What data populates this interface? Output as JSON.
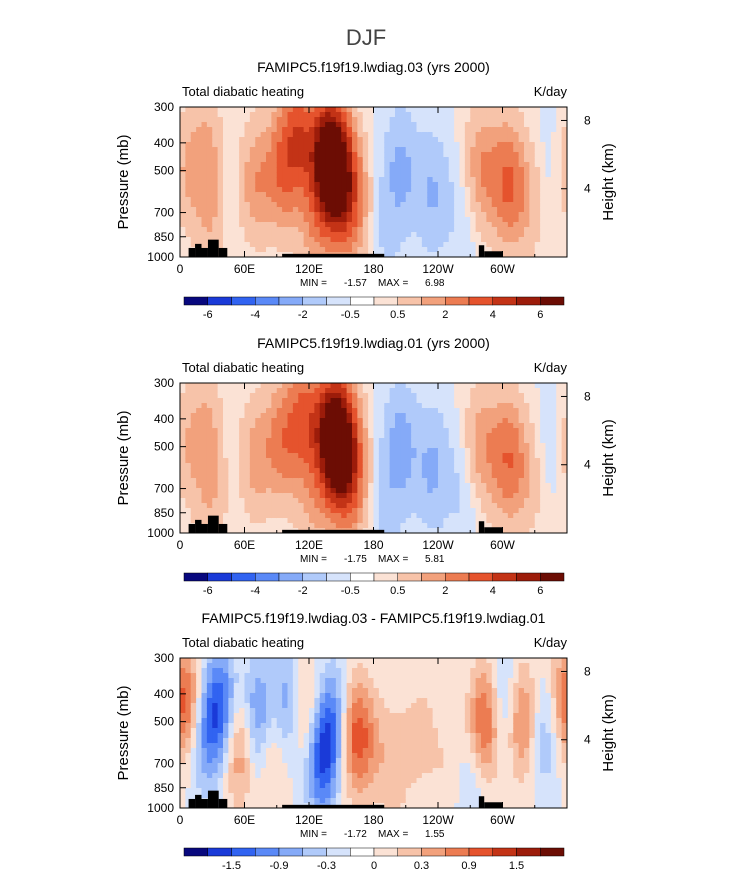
{
  "page_title": "DJF",
  "colors": {
    "scale_full": [
      "#08087e",
      "#1a3ad8",
      "#3163f1",
      "#5a89f7",
      "#85aaf8",
      "#b0cafa",
      "#d6e3fb",
      "#ffffff",
      "#fbe2d5",
      "#f7c3a9",
      "#f2a17c",
      "#ec7c52",
      "#e5532d",
      "#c33316",
      "#9c1c0a",
      "#6c0d04"
    ],
    "land": "#000000",
    "line": "#000000"
  },
  "chart_data": [
    {
      "type": "heatmap",
      "title": "FAMIPC5.f19f19.lwdiag.03 (yrs 2000)",
      "subtitle_left": "Total diabatic heating",
      "subtitle_right": "K/day",
      "xlabel": "",
      "ylabel": "Pressure (mb)",
      "ylabel_right": "Height (km)",
      "x_ticks": [
        "0",
        "60E",
        "120E",
        "180",
        "120W",
        "60W"
      ],
      "y_ticks": [
        "300",
        "400",
        "500",
        "700",
        "850",
        "1000"
      ],
      "y_ticks_right": [
        "8",
        "4"
      ],
      "stats": {
        "min_label": "MIN =",
        "min": "-1.57",
        "max_label": "MAX =",
        "max": "6.98"
      },
      "colorbar_labels": [
        "-6",
        "-4",
        "-2",
        "-0.5",
        "0.5",
        "2",
        "4",
        "6"
      ],
      "blobs": [
        {
          "lon": 5,
          "p": 500,
          "v": 1.2
        },
        {
          "lon": 25,
          "p": 450,
          "v": 1.5
        },
        {
          "lon": 30,
          "p": 800,
          "v": 1.0
        },
        {
          "lon": 45,
          "p": 600,
          "v": -0.3
        },
        {
          "lon": 70,
          "p": 550,
          "v": 1.8
        },
        {
          "lon": 95,
          "p": 500,
          "v": 2.5
        },
        {
          "lon": 110,
          "p": 380,
          "v": 3.2
        },
        {
          "lon": 135,
          "p": 450,
          "v": 4.5
        },
        {
          "lon": 145,
          "p": 500,
          "v": 6.9
        },
        {
          "lon": 160,
          "p": 650,
          "v": 2.5
        },
        {
          "lon": 125,
          "p": 800,
          "v": 1.2
        },
        {
          "lon": 205,
          "p": 500,
          "v": -1.5
        },
        {
          "lon": 235,
          "p": 600,
          "v": -1.3
        },
        {
          "lon": 190,
          "p": 850,
          "v": -0.5
        },
        {
          "lon": 265,
          "p": 700,
          "v": -0.6
        },
        {
          "lon": 280,
          "p": 500,
          "v": 2.0
        },
        {
          "lon": 305,
          "p": 550,
          "v": 3.0
        },
        {
          "lon": 325,
          "p": 650,
          "v": 1.0
        },
        {
          "lon": 345,
          "p": 500,
          "v": -0.4
        }
      ]
    },
    {
      "type": "heatmap",
      "title": "FAMIPC5.f19f19.lwdiag.01 (yrs 2000)",
      "subtitle_left": "Total diabatic heating",
      "subtitle_right": "K/day",
      "xlabel": "",
      "ylabel": "Pressure (mb)",
      "ylabel_right": "Height (km)",
      "x_ticks": [
        "0",
        "60E",
        "120E",
        "180",
        "120W",
        "60W"
      ],
      "y_ticks": [
        "300",
        "400",
        "500",
        "700",
        "850",
        "1000"
      ],
      "y_ticks_right": [
        "8",
        "4"
      ],
      "stats": {
        "min_label": "MIN =",
        "min": "-1.75",
        "max_label": "MAX =",
        "max": "5.81"
      },
      "colorbar_labels": [
        "-6",
        "-4",
        "-2",
        "-0.5",
        "0.5",
        "2",
        "4",
        "6"
      ],
      "blobs": [
        {
          "lon": 5,
          "p": 500,
          "v": 1.0
        },
        {
          "lon": 25,
          "p": 450,
          "v": 1.4
        },
        {
          "lon": 30,
          "p": 800,
          "v": 1.0
        },
        {
          "lon": 45,
          "p": 600,
          "v": -0.2
        },
        {
          "lon": 70,
          "p": 550,
          "v": 1.6
        },
        {
          "lon": 95,
          "p": 480,
          "v": 2.3
        },
        {
          "lon": 115,
          "p": 400,
          "v": 3.0
        },
        {
          "lon": 140,
          "p": 450,
          "v": 5.0
        },
        {
          "lon": 150,
          "p": 500,
          "v": 5.8
        },
        {
          "lon": 160,
          "p": 650,
          "v": 2.2
        },
        {
          "lon": 125,
          "p": 800,
          "v": 1.0
        },
        {
          "lon": 205,
          "p": 500,
          "v": -1.7
        },
        {
          "lon": 235,
          "p": 600,
          "v": -1.4
        },
        {
          "lon": 190,
          "p": 850,
          "v": -0.6
        },
        {
          "lon": 265,
          "p": 700,
          "v": -0.7
        },
        {
          "lon": 280,
          "p": 500,
          "v": 1.8
        },
        {
          "lon": 305,
          "p": 550,
          "v": 2.8
        },
        {
          "lon": 325,
          "p": 650,
          "v": 0.9
        },
        {
          "lon": 345,
          "p": 500,
          "v": -0.5
        }
      ]
    },
    {
      "type": "heatmap",
      "title": "FAMIPC5.f19f19.lwdiag.03 - FAMIPC5.f19f19.lwdiag.01",
      "subtitle_left": "Total diabatic heating",
      "subtitle_right": "K/day",
      "xlabel": "",
      "ylabel": "Pressure (mb)",
      "ylabel_right": "Height (km)",
      "x_ticks": [
        "0",
        "60E",
        "120E",
        "180",
        "120W",
        "60W"
      ],
      "y_ticks": [
        "300",
        "400",
        "500",
        "700",
        "850",
        "1000"
      ],
      "y_ticks_right": [
        "8",
        "4"
      ],
      "stats": {
        "min_label": "MIN =",
        "min": "-1.72",
        "max_label": "MAX =",
        "max": "1.55"
      },
      "colorbar_labels": [
        "-1.5",
        "-0.9",
        "-0.3",
        "0",
        "0.3",
        "0.9",
        "1.5"
      ],
      "blobs": [
        {
          "lon": 8,
          "p": 450,
          "v": 1.3
        },
        {
          "lon": 20,
          "p": 550,
          "v": -1.0
        },
        {
          "lon": 38,
          "p": 450,
          "v": -1.5
        },
        {
          "lon": 55,
          "p": 600,
          "v": 1.2
        },
        {
          "lon": 72,
          "p": 500,
          "v": -1.3
        },
        {
          "lon": 85,
          "p": 600,
          "v": 0.8
        },
        {
          "lon": 100,
          "p": 450,
          "v": -1.0
        },
        {
          "lon": 118,
          "p": 500,
          "v": 1.1
        },
        {
          "lon": 130,
          "p": 650,
          "v": -1.7
        },
        {
          "lon": 145,
          "p": 500,
          "v": -1.1
        },
        {
          "lon": 160,
          "p": 550,
          "v": 1.3
        },
        {
          "lon": 175,
          "p": 600,
          "v": 0.6
        },
        {
          "lon": 200,
          "p": 700,
          "v": 0.5
        },
        {
          "lon": 225,
          "p": 550,
          "v": 0.4
        },
        {
          "lon": 250,
          "p": 750,
          "v": 0.3
        },
        {
          "lon": 270,
          "p": 850,
          "v": -0.4
        },
        {
          "lon": 285,
          "p": 500,
          "v": 1.5
        },
        {
          "lon": 300,
          "p": 450,
          "v": -0.9
        },
        {
          "lon": 318,
          "p": 500,
          "v": 1.2
        },
        {
          "lon": 338,
          "p": 550,
          "v": -0.7
        },
        {
          "lon": 355,
          "p": 400,
          "v": 0.5
        }
      ]
    }
  ]
}
